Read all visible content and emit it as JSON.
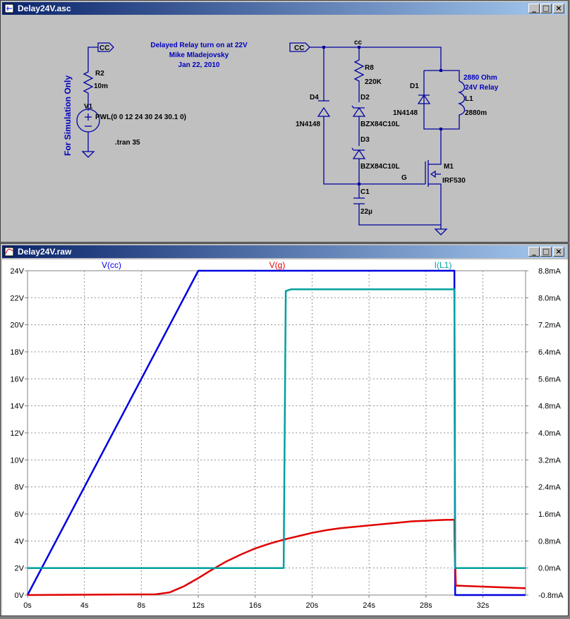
{
  "schematic_window": {
    "title": "Delay24V.asc",
    "buttons": {
      "minimize": "_",
      "maximize": "□",
      "close": "×"
    },
    "sim_note": "For Simulation Only",
    "header_lines": [
      "Delayed Relay turn on at 22V",
      "Mike Mladejovsky",
      "Jan 22, 2010"
    ],
    "source_label": "CC",
    "r2": {
      "name": "R2",
      "value": "10m"
    },
    "v1": {
      "name": "V1",
      "value": "PWL(0 0 12 24 30 24 30.1 0)"
    },
    "tran": ".tran 35",
    "cc_label": "CC",
    "net_cc": "cc",
    "r8": {
      "name": "R8",
      "value": "220K"
    },
    "d4": {
      "name": "D4",
      "value": "1N4148"
    },
    "d2": {
      "name": "D2",
      "value": "BZX84C10L"
    },
    "d3": {
      "name": "D3",
      "value": "BZX84C10L"
    },
    "d1": {
      "name": "D1",
      "value": "1N4148"
    },
    "l1": {
      "name": "L1",
      "value": "2880m"
    },
    "relay_note": [
      "2880 Ohm",
      "24V Relay"
    ],
    "m1": {
      "name": "M1",
      "value": "IRF530"
    },
    "gate_net": "G",
    "c1": {
      "name": "C1",
      "value": "22µ"
    }
  },
  "waveform_window": {
    "title": "Delay24V.raw",
    "buttons": {
      "minimize": "_",
      "maximize": "□",
      "close": "×"
    }
  },
  "chart_data": {
    "type": "line",
    "xlabel": "",
    "xlim": [
      0,
      35
    ],
    "x_ticks": [
      "0s",
      "4s",
      "8s",
      "12s",
      "16s",
      "20s",
      "24s",
      "28s",
      "32s"
    ],
    "y_left": {
      "lim": [
        0,
        24
      ],
      "ticks": [
        "0V",
        "2V",
        "4V",
        "6V",
        "8V",
        "10V",
        "12V",
        "14V",
        "16V",
        "18V",
        "20V",
        "22V",
        "24V"
      ]
    },
    "y_right": {
      "lim": [
        -0.8,
        8.8
      ],
      "unit": "mA",
      "ticks": [
        "-0.8mA",
        "0.0mA",
        "0.8mA",
        "1.6mA",
        "2.4mA",
        "3.2mA",
        "4.0mA",
        "4.8mA",
        "5.6mA",
        "6.4mA",
        "7.2mA",
        "8.0mA",
        "8.8mA"
      ]
    },
    "grid": true,
    "legend": "top",
    "series": [
      {
        "name": "V(cc)",
        "axis": "left",
        "color": "#0000e0",
        "x": [
          0,
          12,
          30,
          30.05,
          35
        ],
        "y": [
          0,
          24,
          24,
          0,
          0
        ]
      },
      {
        "name": "V(g)",
        "axis": "left",
        "color": "#e00000",
        "x": [
          0,
          9,
          10,
          11,
          12,
          13,
          14,
          15,
          16,
          17,
          18,
          19,
          20,
          21,
          22,
          23,
          24,
          25,
          26,
          27,
          28,
          29,
          30,
          30.02,
          30.1,
          35
        ],
        "y": [
          0,
          0.05,
          0.2,
          0.65,
          1.25,
          1.9,
          2.5,
          3.0,
          3.45,
          3.8,
          4.1,
          4.35,
          4.6,
          4.8,
          4.95,
          5.05,
          5.15,
          5.25,
          5.35,
          5.45,
          5.5,
          5.55,
          5.58,
          3.5,
          0.7,
          0.5
        ]
      },
      {
        "name": "I(L1)",
        "axis": "right",
        "color": "#00a0a0",
        "x": [
          0,
          18,
          18.15,
          18.5,
          30,
          30.05,
          35
        ],
        "y": [
          0,
          0,
          8.2,
          8.25,
          8.25,
          0,
          0
        ]
      }
    ]
  }
}
